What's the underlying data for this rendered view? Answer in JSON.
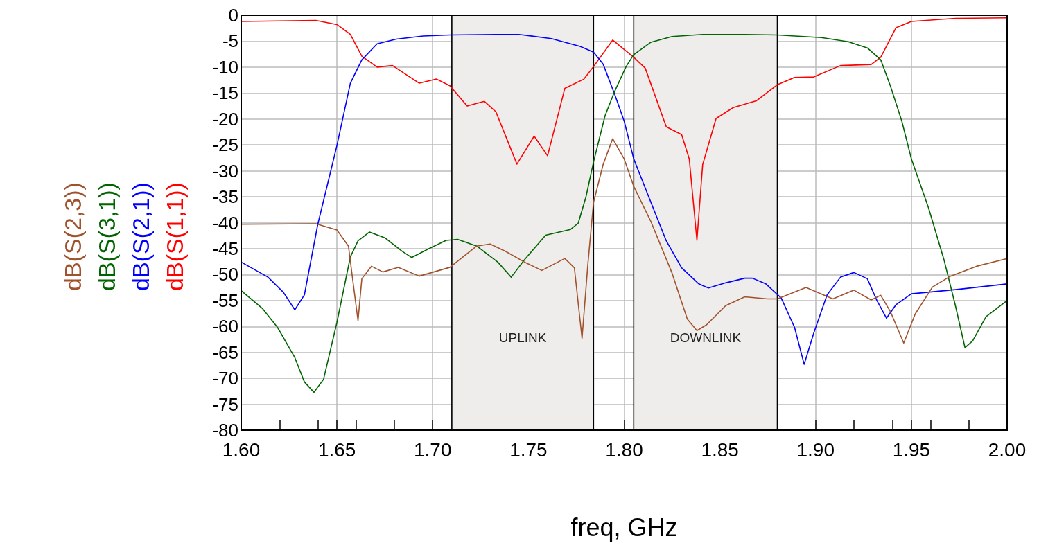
{
  "chart_data": {
    "type": "line",
    "xlabel": "freq, GHz",
    "xlim": [
      1.6,
      2.0
    ],
    "ylim": [
      -80,
      0
    ],
    "xticks": [
      {
        "value": 1.6,
        "label": "1.60"
      },
      {
        "value": 1.65,
        "label": "1.65"
      },
      {
        "value": 1.7,
        "label": "1.70"
      },
      {
        "value": 1.75,
        "label": "1.75"
      },
      {
        "value": 1.8,
        "label": "1.80"
      },
      {
        "value": 1.85,
        "label": "1.85"
      },
      {
        "value": 1.9,
        "label": "1.90"
      },
      {
        "value": 1.95,
        "label": "1.95"
      },
      {
        "value": 2.0,
        "label": "2.00"
      }
    ],
    "yticks": [
      0,
      -5,
      -10,
      -15,
      -20,
      -25,
      -30,
      -35,
      -40,
      -45,
      -50,
      -55,
      -60,
      -65,
      -70,
      -75,
      -80
    ],
    "grid": true,
    "legend": "left",
    "marker": "none",
    "line_style": "solid",
    "bands": [
      {
        "axis": "x",
        "from": 1.71,
        "to": 1.784,
        "label": "UPLINK",
        "color": "#efedeb"
      },
      {
        "axis": "x",
        "from": 1.805,
        "to": 1.88,
        "label": "DOWNLINK",
        "color": "#efedeb"
      }
    ],
    "series": [
      {
        "name": "dB(S(1,1))",
        "color": "#ff0000",
        "x": [
          1.6,
          1.639,
          1.65,
          1.657,
          1.663,
          1.671,
          1.679,
          1.693,
          1.702,
          1.709,
          1.718,
          1.727,
          1.733,
          1.744,
          1.753,
          1.76,
          1.769,
          1.779,
          1.784,
          1.794,
          1.805,
          1.811,
          1.822,
          1.83,
          1.834,
          1.838,
          1.841,
          1.848,
          1.857,
          1.869,
          1.88,
          1.889,
          1.899,
          1.913,
          1.929,
          1.934,
          1.942,
          1.95,
          1.973,
          2.0
        ],
        "values": [
          -1.2,
          -1.0,
          -1.8,
          -3.7,
          -7.9,
          -10,
          -9.7,
          -13.1,
          -12.3,
          -13.6,
          -17.5,
          -16.6,
          -18.6,
          -28.7,
          -23.3,
          -27.1,
          -14.1,
          -12.3,
          -9.9,
          -4.8,
          -8.1,
          -10.2,
          -21.5,
          -23,
          -27.7,
          -43.4,
          -28.8,
          -19.9,
          -17.8,
          -16.5,
          -13.4,
          -12,
          -11.9,
          -9.7,
          -9.5,
          -8.1,
          -2.4,
          -1.2,
          -0.6,
          -0.5
        ]
      },
      {
        "name": "dB(S(2,1))",
        "color": "#0000ff",
        "x": [
          1.6,
          1.614,
          1.622,
          1.628,
          1.633,
          1.64,
          1.65,
          1.657,
          1.663,
          1.671,
          1.681,
          1.695,
          1.709,
          1.733,
          1.745,
          1.762,
          1.777,
          1.784,
          1.789,
          1.795,
          1.8,
          1.805,
          1.814,
          1.822,
          1.83,
          1.839,
          1.844,
          1.853,
          1.863,
          1.867,
          1.874,
          1.882,
          1.889,
          1.894,
          1.899,
          1.906,
          1.913,
          1.92,
          1.927,
          1.932,
          1.937,
          1.942,
          1.95,
          1.973,
          2.0
        ],
        "values": [
          -47.6,
          -50.5,
          -53.4,
          -56.8,
          -53.9,
          -40.3,
          -25.1,
          -13.1,
          -8.6,
          -5.5,
          -4.6,
          -4.0,
          -3.8,
          -3.7,
          -3.7,
          -4.5,
          -6.0,
          -7.1,
          -9.4,
          -15.2,
          -20.4,
          -27.7,
          -36.1,
          -43.5,
          -48.7,
          -51.8,
          -52.6,
          -51.6,
          -50.7,
          -50.7,
          -51.8,
          -54.5,
          -60.2,
          -67.3,
          -61.3,
          -53.9,
          -50.5,
          -49.6,
          -50.8,
          -55,
          -58.4,
          -55.8,
          -53.7,
          -52.9,
          -51.8
        ]
      },
      {
        "name": "dB(S(3,1))",
        "color": "#006400",
        "x": [
          1.6,
          1.611,
          1.619,
          1.628,
          1.633,
          1.638,
          1.643,
          1.65,
          1.657,
          1.661,
          1.667,
          1.675,
          1.684,
          1.689,
          1.698,
          1.707,
          1.713,
          1.723,
          1.734,
          1.741,
          1.748,
          1.759,
          1.772,
          1.776,
          1.78,
          1.784,
          1.79,
          1.795,
          1.801,
          1.805,
          1.814,
          1.825,
          1.841,
          1.863,
          1.88,
          1.903,
          1.917,
          1.927,
          1.934,
          1.939,
          1.945,
          1.95,
          1.959,
          1.967,
          1.973,
          1.978,
          1.982,
          1.989,
          2.0
        ],
        "values": [
          -53.1,
          -56.5,
          -60.2,
          -66,
          -70.7,
          -72.7,
          -70.2,
          -59.2,
          -46.6,
          -43.5,
          -41.8,
          -42.9,
          -45.5,
          -46.7,
          -45,
          -43.4,
          -43.2,
          -44.5,
          -47.6,
          -50.5,
          -47.1,
          -42.4,
          -41.3,
          -40.1,
          -35.1,
          -28.3,
          -19.4,
          -14.7,
          -9.9,
          -7.6,
          -5.2,
          -4.1,
          -3.7,
          -3.7,
          -3.8,
          -4.3,
          -5.1,
          -6.3,
          -8.6,
          -13.6,
          -20.4,
          -27.7,
          -37.2,
          -47.1,
          -56,
          -64.1,
          -62.8,
          -58.1,
          -55
        ]
      },
      {
        "name": "dB(S(2,3))",
        "color": "#a0522d",
        "x": [
          1.6,
          1.639,
          1.65,
          1.656,
          1.658,
          1.661,
          1.663,
          1.668,
          1.674,
          1.682,
          1.693,
          1.709,
          1.723,
          1.73,
          1.738,
          1.748,
          1.757,
          1.769,
          1.774,
          1.778,
          1.781,
          1.784,
          1.789,
          1.794,
          1.8,
          1.805,
          1.814,
          1.825,
          1.833,
          1.838,
          1.843,
          1.853,
          1.863,
          1.875,
          1.88,
          1.895,
          1.909,
          1.92,
          1.929,
          1.934,
          1.939,
          1.946,
          1.952,
          1.961,
          1.97,
          1.984,
          2.0
        ],
        "values": [
          -40.3,
          -40.2,
          -41.4,
          -44.5,
          -50.3,
          -58.9,
          -50.8,
          -48.4,
          -49.5,
          -48.6,
          -50.3,
          -48.6,
          -44.5,
          -44.1,
          -45.5,
          -47.6,
          -49.2,
          -46.9,
          -48.7,
          -62.3,
          -48.2,
          -36.1,
          -28.8,
          -23.8,
          -27.7,
          -33,
          -39.8,
          -49.7,
          -58.6,
          -60.8,
          -59.7,
          -56,
          -54.3,
          -54.7,
          -54.7,
          -52.5,
          -54.7,
          -53,
          -54.9,
          -54,
          -57.1,
          -63.2,
          -57.6,
          -52.4,
          -50.4,
          -48.4,
          -46.9
        ]
      }
    ]
  }
}
